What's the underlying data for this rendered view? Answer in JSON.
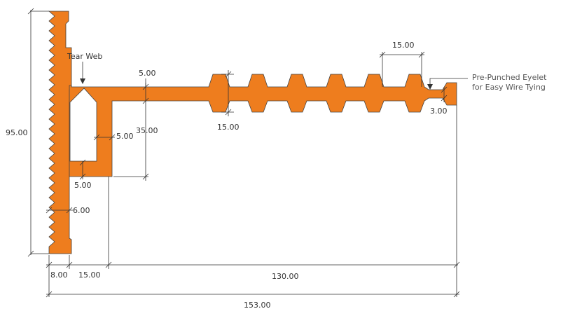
{
  "colors": {
    "profile": "#EE7D1E",
    "line": "#333333"
  },
  "labels": {
    "tear_web": "Tear Web",
    "eyelet_line1": "Pre-Punched Eyelet",
    "eyelet_line2": "for Easy Wire Tying"
  },
  "dimensions": {
    "height_total": "95.00",
    "width_total": "153.00",
    "wall_8": "8.00",
    "gap_15": "15.00",
    "length_130": "130.00",
    "arm_thickness": "5.00",
    "web_vertical": "5.00",
    "web_bottom": "5.00",
    "stem_height": "35.00",
    "tooth_height": "15.00",
    "tooth_pitch": "15.00",
    "tip_3": "3.00",
    "base_6": "6.00"
  }
}
